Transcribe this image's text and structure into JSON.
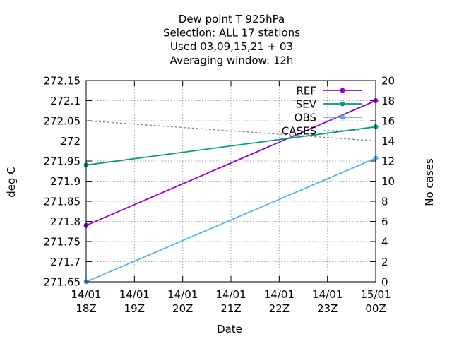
{
  "chart_data": {
    "type": "line",
    "title_lines": [
      "Dew point T 925hPa",
      "Selection: ALL      17 stations",
      "Used  03,09,15,21 + 03",
      "Averaging window: 12h"
    ],
    "xlabel": "Date",
    "ylabel": "deg C",
    "y2label": "No cases",
    "categories": [
      [
        "14/01",
        "18Z"
      ],
      [
        "14/01",
        "19Z"
      ],
      [
        "14/01",
        "20Z"
      ],
      [
        "14/01",
        "21Z"
      ],
      [
        "14/01",
        "22Z"
      ],
      [
        "14/01",
        "23Z"
      ],
      [
        "15/01",
        "00Z"
      ]
    ],
    "ylim": [
      271.65,
      272.15
    ],
    "yticks": [
      "271.65",
      "271.7",
      "271.75",
      "271.8",
      "271.85",
      "271.9",
      "271.95",
      "272",
      "272.05",
      "272.1",
      "272.15"
    ],
    "y2lim": [
      0,
      20
    ],
    "y2ticks": [
      "0",
      "2",
      "4",
      "6",
      "8",
      "10",
      "12",
      "14",
      "16",
      "18",
      "20"
    ],
    "grid": true,
    "legend_position": "top-right",
    "series": [
      {
        "name": "REF",
        "color": "#9400d3",
        "marker": true,
        "axis": "y",
        "points": [
          [
            0,
            271.79
          ],
          [
            6,
            272.1
          ]
        ]
      },
      {
        "name": "SEV",
        "color": "#009e73",
        "marker": true,
        "axis": "y",
        "points": [
          [
            0,
            271.94
          ],
          [
            6,
            272.035
          ]
        ]
      },
      {
        "name": "OBS",
        "color": "#56b4e9",
        "marker": true,
        "axis": "y",
        "points": [
          [
            0,
            271.65
          ],
          [
            6,
            271.957
          ]
        ]
      },
      {
        "name": "CASES",
        "color": "#808080",
        "marker": false,
        "dashed": true,
        "axis": "y2",
        "points": [
          [
            0,
            16
          ],
          [
            6,
            14
          ]
        ]
      }
    ]
  }
}
